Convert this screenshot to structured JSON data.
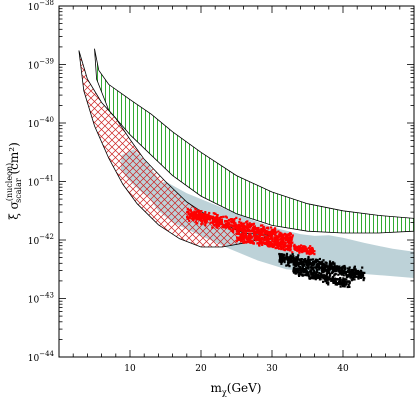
{
  "chart_data": {
    "type": "area",
    "title": "",
    "xlabel": {
      "main": "m",
      "sub": "χ",
      "rest": "(GeV)"
    },
    "ylabel": {
      "main": "ξ σ",
      "sup": "(nucleon)",
      "sub": "scalar",
      "rest": " (cm²)"
    },
    "xlim": [
      0,
      50
    ],
    "ylim_log10": [
      -44,
      -38
    ],
    "y_scale": "log",
    "grid": false,
    "x_ticks": [
      {
        "value": 10,
        "label": "10"
      },
      {
        "value": 20,
        "label": "20"
      },
      {
        "value": 30,
        "label": "30"
      },
      {
        "value": 40,
        "label": "40"
      }
    ],
    "y_ticks": [
      {
        "exp": -44,
        "base": "10",
        "power": "−44"
      },
      {
        "exp": -43,
        "base": "10",
        "power": "−43"
      },
      {
        "exp": -42,
        "base": "10",
        "power": "−42"
      },
      {
        "exp": -41,
        "base": "10",
        "power": "−41"
      },
      {
        "exp": -40,
        "base": "10",
        "power": "−40"
      },
      {
        "exp": -39,
        "base": "10",
        "power": "−39"
      },
      {
        "exp": -38,
        "base": "10",
        "power": "−38"
      }
    ],
    "colors": {
      "axes": "#000000",
      "green_band": "#33aa33",
      "red_band": "#cc2222",
      "gray_region": "#bdd2d8",
      "red_points": "#ff0000",
      "black_points": "#000000"
    },
    "regions": [
      {
        "id": "green-hatched-band",
        "style": "vertical-hatch",
        "upper": [
          [
            5,
            -38.73
          ],
          [
            5.6,
            -39.1
          ],
          [
            7,
            -39.34
          ],
          [
            10,
            -39.6
          ],
          [
            13,
            -39.85
          ],
          [
            16,
            -40.15
          ],
          [
            20,
            -40.5
          ],
          [
            25,
            -40.9
          ],
          [
            30,
            -41.18
          ],
          [
            35,
            -41.38
          ],
          [
            40,
            -41.5
          ],
          [
            45,
            -41.58
          ],
          [
            50,
            -41.63
          ]
        ],
        "lower": [
          [
            5,
            -38.73
          ],
          [
            5.3,
            -39.25
          ],
          [
            7,
            -39.78
          ],
          [
            10,
            -40.2
          ],
          [
            13,
            -40.55
          ],
          [
            16,
            -40.9
          ],
          [
            20,
            -41.25
          ],
          [
            25,
            -41.55
          ],
          [
            30,
            -41.75
          ],
          [
            35,
            -41.85
          ],
          [
            40,
            -41.88
          ],
          [
            45,
            -41.88
          ],
          [
            50,
            -41.85
          ]
        ]
      },
      {
        "id": "red-crosshatched-band",
        "style": "cross-hatch",
        "upper": [
          [
            2.8,
            -38.76
          ],
          [
            4,
            -39.25
          ],
          [
            6,
            -39.65
          ],
          [
            8,
            -39.92
          ],
          [
            10,
            -40.28
          ],
          [
            12,
            -40.62
          ],
          [
            15,
            -41.0
          ],
          [
            18,
            -41.35
          ],
          [
            22,
            -41.67
          ],
          [
            26,
            -41.88
          ],
          [
            30,
            -41.92
          ]
        ],
        "lower": [
          [
            2.8,
            -38.76
          ],
          [
            3.5,
            -39.45
          ],
          [
            5,
            -40.05
          ],
          [
            7,
            -40.6
          ],
          [
            9,
            -41.05
          ],
          [
            11,
            -41.38
          ],
          [
            14,
            -41.74
          ],
          [
            17,
            -41.98
          ],
          [
            20,
            -42.12
          ],
          [
            23,
            -42.12
          ],
          [
            27,
            -42.03
          ],
          [
            30,
            -41.92
          ]
        ]
      },
      {
        "id": "gray-region-upper-left",
        "style": "fill",
        "outline": [
          [
            8.8,
            -40.55
          ],
          [
            10.5,
            -40.45
          ],
          [
            12.5,
            -40.7
          ],
          [
            14.3,
            -41.0
          ],
          [
            13.3,
            -41.3
          ],
          [
            11.8,
            -41.2
          ],
          [
            10,
            -41.0
          ],
          [
            8.7,
            -40.8
          ]
        ]
      },
      {
        "id": "gray-region-main",
        "style": "fill",
        "outline": [
          [
            12.5,
            -41.1
          ],
          [
            15,
            -41.0
          ],
          [
            18,
            -41.2
          ],
          [
            22,
            -41.4
          ],
          [
            26,
            -41.6
          ],
          [
            30,
            -41.78
          ],
          [
            34,
            -41.9
          ],
          [
            36,
            -41.93
          ],
          [
            38,
            -41.92
          ],
          [
            40,
            -41.96
          ],
          [
            43,
            -42.05
          ],
          [
            47,
            -42.15
          ],
          [
            50,
            -42.2
          ],
          [
            50,
            -42.65
          ],
          [
            45,
            -42.6
          ],
          [
            40,
            -42.55
          ],
          [
            36,
            -42.55
          ],
          [
            32,
            -42.5
          ],
          [
            28,
            -42.35
          ],
          [
            24,
            -42.15
          ],
          [
            20,
            -41.93
          ],
          [
            16,
            -41.7
          ],
          [
            14,
            -41.5
          ],
          [
            12.8,
            -41.3
          ]
        ]
      }
    ],
    "scatter_series": [
      {
        "id": "red-points",
        "color": "#ff0000",
        "clusters": [
          {
            "x": [
              18,
              33
            ],
            "y_center": [
              -41.55,
              -42.0
            ],
            "spread": 0.16,
            "n": 650
          },
          {
            "x": [
              25,
              36
            ],
            "y_center": [
              -41.95,
              -42.2
            ],
            "spread": 0.12,
            "n": 320
          }
        ]
      },
      {
        "id": "black-points",
        "color": "#000000",
        "clusters": [
          {
            "x": [
              31,
              43
            ],
            "y_center": [
              -42.3,
              -42.6
            ],
            "spread": 0.15,
            "n": 520
          },
          {
            "x": [
              33,
              41
            ],
            "y_center": [
              -42.5,
              -42.75
            ],
            "spread": 0.12,
            "n": 260
          }
        ]
      }
    ]
  }
}
